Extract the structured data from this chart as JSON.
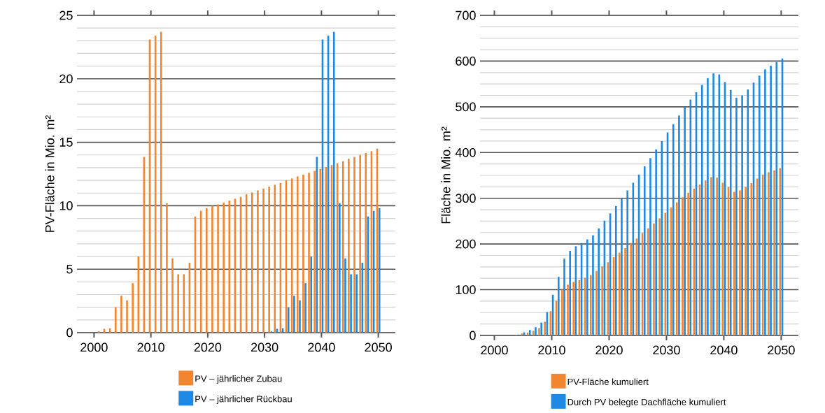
{
  "chart_data": [
    {
      "type": "bar",
      "ylabel": "PV-Fläche in Mio. m²",
      "grid": "y",
      "legend": "bottom",
      "xlim": [
        1997,
        2053
      ],
      "ylim": [
        0,
        25
      ],
      "xticks": [
        2000,
        2010,
        2020,
        2030,
        2040,
        2050
      ],
      "yticks": [
        0,
        5,
        10,
        15,
        20,
        25
      ],
      "x": [
        2001,
        2002,
        2003,
        2004,
        2005,
        2006,
        2007,
        2008,
        2009,
        2010,
        2011,
        2012,
        2013,
        2014,
        2015,
        2016,
        2017,
        2018,
        2019,
        2020,
        2021,
        2022,
        2023,
        2024,
        2025,
        2026,
        2027,
        2028,
        2029,
        2030,
        2031,
        2032,
        2033,
        2034,
        2035,
        2036,
        2037,
        2038,
        2039,
        2040,
        2041,
        2042,
        2043,
        2044,
        2045,
        2046,
        2047,
        2048,
        2049,
        2050
      ],
      "series": [
        {
          "name": "PV – jährlicher Zubau",
          "color": "#f28530",
          "values": [
            0.1,
            0.3,
            0.35,
            2.0,
            2.9,
            2.55,
            3.9,
            6.0,
            13.85,
            23.1,
            23.4,
            23.7,
            10.2,
            5.85,
            4.6,
            4.6,
            5.5,
            9.15,
            9.6,
            9.8,
            10.0,
            10.1,
            10.25,
            10.4,
            10.55,
            10.7,
            10.9,
            11.05,
            11.2,
            11.35,
            11.5,
            11.65,
            11.8,
            12.0,
            12.15,
            12.3,
            12.45,
            12.6,
            12.75,
            12.9,
            13.05,
            13.2,
            13.35,
            13.5,
            13.7,
            13.85,
            14.0,
            14.15,
            14.3,
            14.5
          ]
        },
        {
          "name": "PV – jährlicher Rückbau",
          "color": "#1e88e5",
          "values": [
            null,
            null,
            null,
            null,
            null,
            null,
            null,
            null,
            null,
            null,
            null,
            null,
            null,
            null,
            null,
            null,
            null,
            null,
            null,
            null,
            null,
            null,
            null,
            null,
            null,
            null,
            null,
            null,
            null,
            null,
            0.1,
            0.3,
            0.35,
            2.0,
            2.9,
            2.55,
            3.9,
            6.0,
            13.85,
            23.1,
            23.4,
            23.7,
            10.2,
            5.85,
            4.6,
            4.6,
            5.5,
            9.15,
            9.6,
            9.8
          ]
        }
      ]
    },
    {
      "type": "bar",
      "ylabel": "Fläche in Mio. m²",
      "grid": "y",
      "legend": "bottom",
      "xlim": [
        1997.5,
        2053
      ],
      "ylim": [
        0,
        700
      ],
      "xticks": [
        2000,
        2010,
        2020,
        2030,
        2040,
        2050
      ],
      "yticks": [
        0,
        100,
        200,
        300,
        400,
        500,
        600,
        700
      ],
      "x": [
        2004,
        2005,
        2006,
        2007,
        2008,
        2009,
        2010,
        2011,
        2012,
        2013,
        2014,
        2015,
        2016,
        2017,
        2018,
        2019,
        2020,
        2021,
        2022,
        2023,
        2024,
        2025,
        2026,
        2027,
        2028,
        2029,
        2030,
        2031,
        2032,
        2033,
        2034,
        2035,
        2036,
        2037,
        2038,
        2039,
        2040,
        2041,
        2042,
        2043,
        2044,
        2045,
        2046,
        2047,
        2048,
        2049,
        2050
      ],
      "series": [
        {
          "name": "PV-Fläche kumuliert",
          "color": "#f28530",
          "values": [
            1,
            4,
            6,
            10,
            16,
            30,
            53,
            76,
            100,
            111,
            117,
            121,
            126,
            132,
            141,
            151,
            160,
            171,
            181,
            191,
            202,
            212,
            224,
            234,
            245,
            256,
            268,
            280,
            291,
            302,
            312,
            321,
            330,
            339,
            346,
            345,
            334,
            324,
            314,
            317,
            324,
            333,
            343,
            352,
            357,
            361,
            366
          ]
        },
        {
          "name": "Durch PV belegte Dachfläche kumuliert",
          "color": "#1e88e5",
          "values": [
            2,
            7,
            12,
            18,
            28,
            51,
            89,
            128,
            168,
            185,
            195,
            202,
            210,
            219,
            234,
            251,
            267,
            283,
            300,
            317,
            334,
            352,
            370,
            388,
            407,
            425,
            444,
            462,
            481,
            500,
            516,
            532,
            548,
            563,
            573,
            571,
            554,
            537,
            520,
            525,
            538,
            553,
            568,
            582,
            590,
            598,
            606
          ]
        }
      ]
    }
  ]
}
